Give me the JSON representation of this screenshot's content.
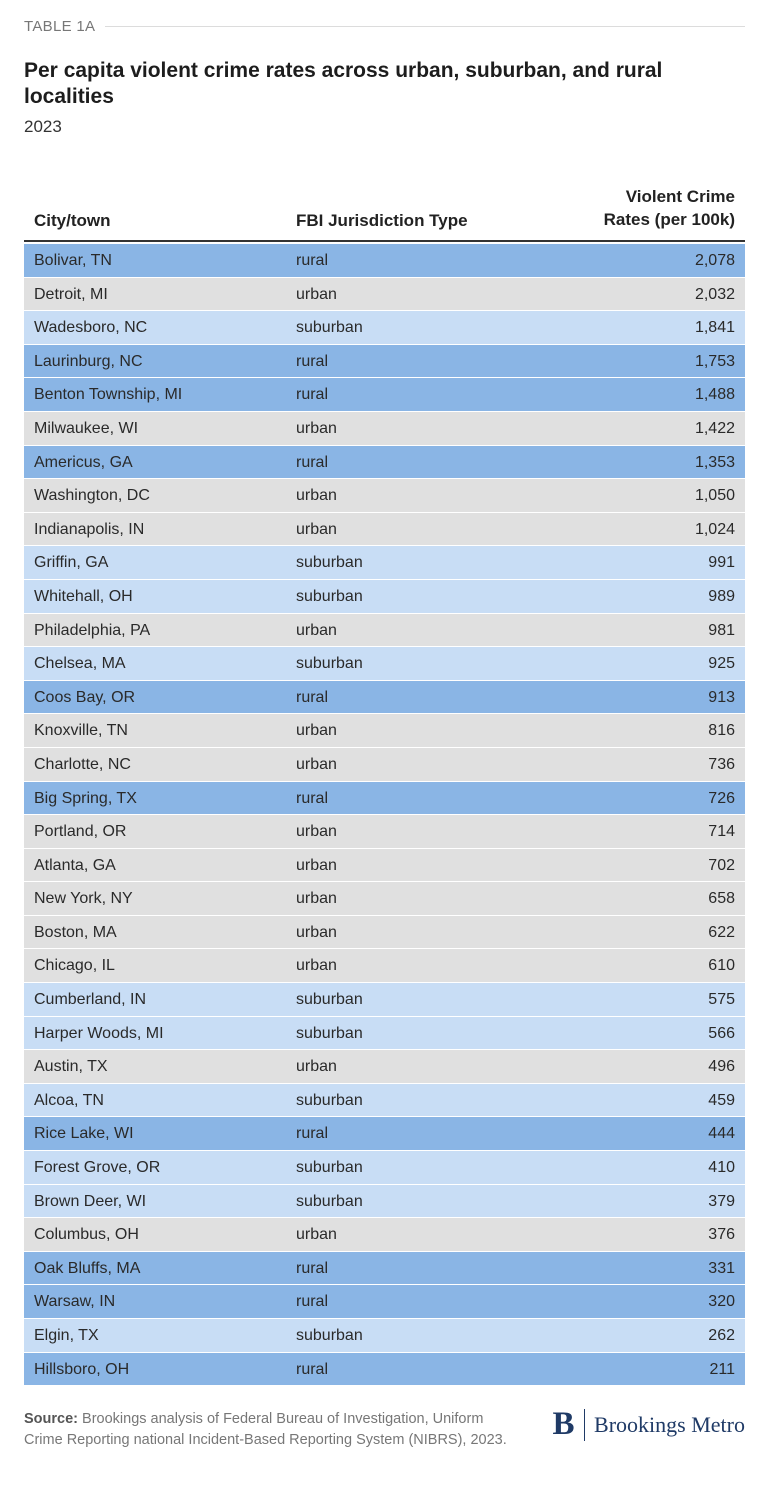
{
  "eyebrow": "TABLE 1A",
  "title": "Per capita violent crime rates across urban, suburban, and rural localities",
  "subtitle": "2023",
  "colors": {
    "rural": "#8ab5e5",
    "urban": "#e0e0e0",
    "suburban": "#c8ddf5"
  },
  "chart_data": {
    "type": "table",
    "title": "Per capita violent crime rates across urban, suburban, and rural localities",
    "subtitle": "2023",
    "columns": [
      "City/town",
      "FBI Jurisdiction Type",
      "Violent Crime",
      "Rates (per 100k)"
    ],
    "rows": [
      {
        "city": "Bolivar, TN",
        "type": "rural",
        "rate": "2,078"
      },
      {
        "city": "Detroit, MI",
        "type": "urban",
        "rate": "2,032"
      },
      {
        "city": "Wadesboro, NC",
        "type": "suburban",
        "rate": "1,841"
      },
      {
        "city": "Laurinburg, NC",
        "type": "rural",
        "rate": "1,753"
      },
      {
        "city": "Benton Township, MI",
        "type": "rural",
        "rate": "1,488"
      },
      {
        "city": "Milwaukee, WI",
        "type": "urban",
        "rate": "1,422"
      },
      {
        "city": "Americus, GA",
        "type": "rural",
        "rate": "1,353"
      },
      {
        "city": "Washington, DC",
        "type": "urban",
        "rate": "1,050"
      },
      {
        "city": "Indianapolis, IN",
        "type": "urban",
        "rate": "1,024"
      },
      {
        "city": "Griffin, GA",
        "type": "suburban",
        "rate": "991"
      },
      {
        "city": "Whitehall, OH",
        "type": "suburban",
        "rate": "989"
      },
      {
        "city": "Philadelphia, PA",
        "type": "urban",
        "rate": "981"
      },
      {
        "city": "Chelsea, MA",
        "type": "suburban",
        "rate": "925"
      },
      {
        "city": "Coos Bay, OR",
        "type": "rural",
        "rate": "913"
      },
      {
        "city": "Knoxville, TN",
        "type": "urban",
        "rate": "816"
      },
      {
        "city": "Charlotte, NC",
        "type": "urban",
        "rate": "736"
      },
      {
        "city": "Big Spring, TX",
        "type": "rural",
        "rate": "726"
      },
      {
        "city": "Portland, OR",
        "type": "urban",
        "rate": "714"
      },
      {
        "city": "Atlanta, GA",
        "type": "urban",
        "rate": "702"
      },
      {
        "city": "New York, NY",
        "type": "urban",
        "rate": "658"
      },
      {
        "city": "Boston, MA",
        "type": "urban",
        "rate": "622"
      },
      {
        "city": "Chicago, IL",
        "type": "urban",
        "rate": "610"
      },
      {
        "city": "Cumberland, IN",
        "type": "suburban",
        "rate": "575"
      },
      {
        "city": "Harper Woods, MI",
        "type": "suburban",
        "rate": "566"
      },
      {
        "city": "Austin, TX",
        "type": "urban",
        "rate": "496"
      },
      {
        "city": "Alcoa, TN",
        "type": "suburban",
        "rate": "459"
      },
      {
        "city": "Rice Lake, WI",
        "type": "rural",
        "rate": "444"
      },
      {
        "city": "Forest Grove, OR",
        "type": "suburban",
        "rate": "410"
      },
      {
        "city": "Brown Deer, WI",
        "type": "suburban",
        "rate": "379"
      },
      {
        "city": "Columbus, OH",
        "type": "urban",
        "rate": "376"
      },
      {
        "city": "Oak Bluffs, MA",
        "type": "rural",
        "rate": "331"
      },
      {
        "city": "Warsaw, IN",
        "type": "rural",
        "rate": "320"
      },
      {
        "city": "Elgin, TX",
        "type": "suburban",
        "rate": "262"
      },
      {
        "city": "Hillsboro, OH",
        "type": "rural",
        "rate": "211"
      }
    ]
  },
  "source": {
    "label": "Source:",
    "text": "Brookings analysis of Federal Bureau of Investigation, Uniform Crime Reporting national Incident-Based Reporting System (NIBRS), 2023."
  },
  "logo": {
    "mark": "B",
    "wordmark": "Brookings Metro"
  }
}
